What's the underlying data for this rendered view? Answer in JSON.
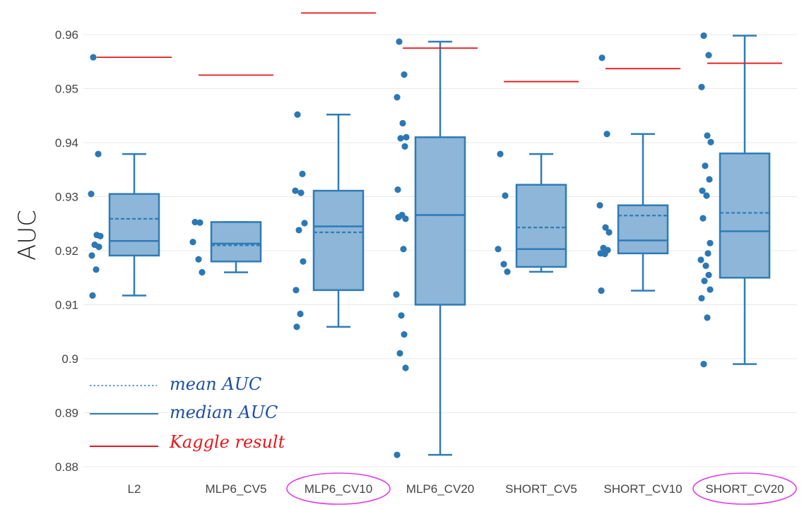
{
  "chart_data": {
    "type": "box",
    "ylabel": "AUC",
    "xlabel": "",
    "ylim": [
      0.878,
      0.9645
    ],
    "yticks": [
      0.88,
      0.89,
      0.9,
      0.91,
      0.92,
      0.93,
      0.94,
      0.95,
      0.96
    ],
    "ytick_labels": [
      "0.88",
      "0.89",
      "0.9",
      "0.91",
      "0.92",
      "0.93",
      "0.94",
      "0.95",
      "0.96"
    ],
    "grid": true,
    "colors": {
      "box_fill": "#8db6d8",
      "box_stroke": "#2f7bb6",
      "point": "#2b78b4",
      "kaggle": "#e8161b",
      "highlight": "#e13ee6",
      "legend_blue": "#1f4fa0",
      "grid": "#e9e9e9"
    },
    "categories": [
      {
        "name": "L2",
        "highlighted": false,
        "min": 0.9117,
        "q1": 0.9191,
        "median": 0.9218,
        "q3": 0.9305,
        "max": 0.9379,
        "mean": 0.9259,
        "kaggle": 0.9558,
        "points": [
          0.9558,
          0.9379,
          0.9305,
          0.9229,
          0.9227,
          0.9211,
          0.9207,
          0.9191,
          0.9165,
          0.9117
        ]
      },
      {
        "name": "MLP6_CV5",
        "highlighted": false,
        "min": 0.916,
        "q1": 0.918,
        "median": 0.9213,
        "q3": 0.9253,
        "max": 0.9253,
        "mean": 0.921,
        "kaggle": 0.9525,
        "points": [
          0.9253,
          0.9252,
          0.9216,
          0.9184,
          0.916
        ]
      },
      {
        "name": "MLP6_CV10",
        "highlighted": true,
        "min": 0.9059,
        "q1": 0.9127,
        "median": 0.9245,
        "q3": 0.9311,
        "max": 0.9452,
        "mean": 0.9234,
        "kaggle": 0.964,
        "points": [
          0.9452,
          0.9342,
          0.9311,
          0.9307,
          0.9251,
          0.9238,
          0.918,
          0.9127,
          0.9083,
          0.9059
        ]
      },
      {
        "name": "MLP6_CV20",
        "highlighted": false,
        "min": 0.8822,
        "q1": 0.91,
        "median": 0.9266,
        "q3": 0.941,
        "max": 0.9587,
        "mean": 0.9266,
        "kaggle": 0.9575,
        "points": [
          0.9587,
          0.9526,
          0.9484,
          0.9436,
          0.941,
          0.9408,
          0.9393,
          0.9313,
          0.9266,
          0.9262,
          0.9259,
          0.9203,
          0.9119,
          0.908,
          0.9045,
          0.901,
          0.8983,
          0.8822
        ]
      },
      {
        "name": "SHORT_CV5",
        "highlighted": false,
        "min": 0.9161,
        "q1": 0.917,
        "median": 0.9203,
        "q3": 0.9322,
        "max": 0.9379,
        "mean": 0.9243,
        "kaggle": 0.9513,
        "points": [
          0.9379,
          0.9302,
          0.9203,
          0.9175,
          0.9161
        ]
      },
      {
        "name": "SHORT_CV10",
        "highlighted": false,
        "min": 0.9126,
        "q1": 0.9195,
        "median": 0.9219,
        "q3": 0.9284,
        "max": 0.9416,
        "mean": 0.9265,
        "kaggle": 0.9537,
        "points": [
          0.9557,
          0.9416,
          0.9284,
          0.9243,
          0.9234,
          0.9205,
          0.9201,
          0.9195,
          0.9194,
          0.9126
        ]
      },
      {
        "name": "SHORT_CV20",
        "highlighted": true,
        "min": 0.899,
        "q1": 0.915,
        "median": 0.9236,
        "q3": 0.938,
        "max": 0.9598,
        "mean": 0.927,
        "kaggle": 0.9547,
        "points": [
          0.9598,
          0.9562,
          0.9503,
          0.9413,
          0.9401,
          0.9357,
          0.9332,
          0.9311,
          0.9302,
          0.926,
          0.9214,
          0.9195,
          0.9183,
          0.9172,
          0.9155,
          0.9144,
          0.9128,
          0.9112,
          0.9076,
          0.899
        ]
      }
    ],
    "legend": {
      "mean_label": "mean AUC",
      "median_label": "median AUC",
      "kaggle_label": "Kaggle result",
      "placement": "bottom-left"
    }
  }
}
